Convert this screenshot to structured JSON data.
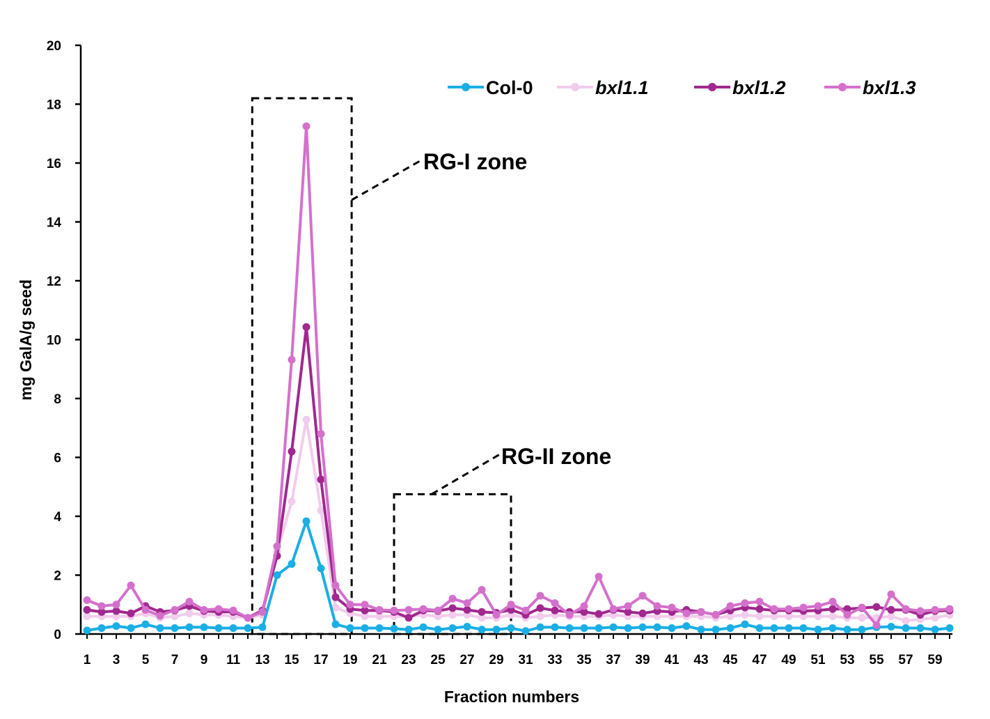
{
  "chart_data": {
    "type": "line",
    "title": "",
    "xlabel": "Fraction numbers",
    "ylabel": "mg GalA/g seed",
    "ylim": [
      0,
      20
    ],
    "yticks": [
      0,
      2,
      4,
      6,
      8,
      10,
      12,
      14,
      16,
      18,
      20
    ],
    "xlim": [
      1,
      60
    ],
    "xtick_labels": [
      "1",
      "3",
      "5",
      "7",
      "9",
      "11",
      "13",
      "15",
      "17",
      "19",
      "21",
      "23",
      "25",
      "27",
      "29",
      "31",
      "33",
      "35",
      "37",
      "39",
      "41",
      "43",
      "45",
      "47",
      "49",
      "51",
      "53",
      "55",
      "57",
      "59"
    ],
    "grid": false,
    "legend_position": "top-right",
    "x": [
      1,
      2,
      3,
      4,
      5,
      6,
      7,
      8,
      9,
      10,
      11,
      12,
      13,
      14,
      15,
      16,
      17,
      18,
      19,
      20,
      21,
      22,
      23,
      24,
      25,
      26,
      27,
      28,
      29,
      30,
      31,
      32,
      33,
      34,
      35,
      36,
      37,
      38,
      39,
      40,
      41,
      42,
      43,
      44,
      45,
      46,
      47,
      48,
      49,
      50,
      51,
      52,
      53,
      54,
      55,
      56,
      57,
      58,
      59,
      60
    ],
    "series": [
      {
        "name": "Col-0",
        "italic": false,
        "color": "#1AAEE5",
        "values": [
          0.12,
          0.2,
          0.27,
          0.2,
          0.33,
          0.2,
          0.2,
          0.23,
          0.23,
          0.2,
          0.2,
          0.2,
          0.23,
          2.0,
          2.38,
          3.83,
          2.23,
          0.33,
          0.2,
          0.2,
          0.2,
          0.18,
          0.15,
          0.23,
          0.15,
          0.2,
          0.25,
          0.15,
          0.15,
          0.2,
          0.1,
          0.23,
          0.23,
          0.2,
          0.2,
          0.2,
          0.23,
          0.2,
          0.23,
          0.23,
          0.2,
          0.27,
          0.15,
          0.15,
          0.2,
          0.33,
          0.2,
          0.2,
          0.2,
          0.2,
          0.15,
          0.2,
          0.15,
          0.15,
          0.23,
          0.25,
          0.2,
          0.2,
          0.15,
          0.2
        ]
      },
      {
        "name": "bxl1.1",
        "italic": true,
        "color": "#F2CCEC",
        "values": [
          0.6,
          0.6,
          0.6,
          0.6,
          0.7,
          0.55,
          0.6,
          0.7,
          0.65,
          0.65,
          0.6,
          0.55,
          0.65,
          2.8,
          4.5,
          7.28,
          4.2,
          0.9,
          0.7,
          0.6,
          0.6,
          0.6,
          0.6,
          0.65,
          0.6,
          0.65,
          0.65,
          0.55,
          0.55,
          0.65,
          0.55,
          0.6,
          0.65,
          0.6,
          0.6,
          0.6,
          0.65,
          0.6,
          0.6,
          0.6,
          0.6,
          0.6,
          0.6,
          0.55,
          0.6,
          0.65,
          0.6,
          0.6,
          0.6,
          0.6,
          0.6,
          0.6,
          0.55,
          0.55,
          0.55,
          0.6,
          0.45,
          0.5,
          0.55,
          0.65
        ]
      },
      {
        "name": "bxl1.2",
        "italic": true,
        "color": "#A0288F",
        "values": [
          0.82,
          0.75,
          0.78,
          0.7,
          0.95,
          0.75,
          0.8,
          0.95,
          0.78,
          0.75,
          0.75,
          0.55,
          0.8,
          2.65,
          6.2,
          10.43,
          5.25,
          1.25,
          0.85,
          0.8,
          0.8,
          0.75,
          0.55,
          0.8,
          0.78,
          0.88,
          0.82,
          0.75,
          0.72,
          0.82,
          0.65,
          0.88,
          0.8,
          0.75,
          0.75,
          0.68,
          0.82,
          0.75,
          0.7,
          0.78,
          0.75,
          0.82,
          0.75,
          0.65,
          0.8,
          0.9,
          0.85,
          0.8,
          0.8,
          0.78,
          0.8,
          0.85,
          0.85,
          0.88,
          0.92,
          0.82,
          0.82,
          0.65,
          0.78,
          0.8
        ]
      },
      {
        "name": "bxl1.3",
        "italic": true,
        "color": "#D470CC",
        "values": [
          1.15,
          0.95,
          1.0,
          1.65,
          0.82,
          0.62,
          0.82,
          1.1,
          0.82,
          0.85,
          0.8,
          0.55,
          0.75,
          2.98,
          9.32,
          17.25,
          6.8,
          1.65,
          1.0,
          1.0,
          0.82,
          0.8,
          0.82,
          0.85,
          0.8,
          1.2,
          1.05,
          1.5,
          0.65,
          1.0,
          0.8,
          1.3,
          1.05,
          0.65,
          0.95,
          1.95,
          0.85,
          0.95,
          1.3,
          0.95,
          0.9,
          0.7,
          0.75,
          0.65,
          0.95,
          1.05,
          1.1,
          0.85,
          0.85,
          0.9,
          0.95,
          1.1,
          0.65,
          0.9,
          0.3,
          1.35,
          0.85,
          0.78,
          0.82,
          0.85
        ]
      }
    ],
    "annotations": [
      {
        "label": "RG-I zone",
        "x_from": 12.3,
        "x_to": 19.1,
        "y_top": 18.2
      },
      {
        "label": "RG-II zone",
        "x_from": 22.0,
        "x_to": 30.0,
        "y_top": 4.75
      }
    ]
  }
}
